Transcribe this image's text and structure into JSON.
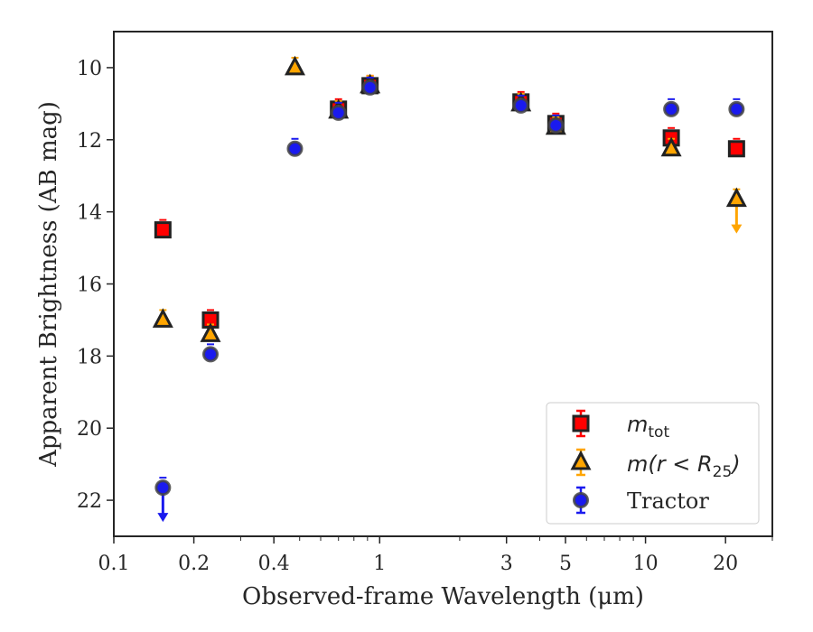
{
  "chart_data": {
    "type": "scatter",
    "xlabel": "Observed-frame Wavelength (μm)",
    "ylabel": "Apparent Brightness (AB mag)",
    "xscale": "log",
    "xlim": [
      0.1,
      30
    ],
    "ylim": [
      23.0,
      9.0
    ],
    "y_inverted": true,
    "xticks": [
      {
        "value": 0.1,
        "label": "0.1"
      },
      {
        "value": 0.2,
        "label": "0.2"
      },
      {
        "value": 0.4,
        "label": "0.4"
      },
      {
        "value": 1,
        "label": "1"
      },
      {
        "value": 3,
        "label": "3"
      },
      {
        "value": 5,
        "label": "5"
      },
      {
        "value": 10,
        "label": "10"
      },
      {
        "value": 20,
        "label": "20"
      }
    ],
    "yticks": [
      {
        "value": 10,
        "label": "10"
      },
      {
        "value": 12,
        "label": "12"
      },
      {
        "value": 14,
        "label": "14"
      },
      {
        "value": 16,
        "label": "16"
      },
      {
        "value": 18,
        "label": "18"
      },
      {
        "value": 20,
        "label": "20"
      },
      {
        "value": 22,
        "label": "22"
      }
    ],
    "grid": false,
    "legend_position": "bottom-right",
    "series": [
      {
        "key": "mtot",
        "label_main": "m",
        "label_sub": "tot",
        "marker": "square",
        "color": "#ff0000",
        "edge": "#222222",
        "points": [
          {
            "x": 0.153,
            "y": 14.5
          },
          {
            "x": 0.231,
            "y": 17.0
          },
          {
            "x": 0.7,
            "y": 11.15
          },
          {
            "x": 0.92,
            "y": 10.5
          },
          {
            "x": 3.4,
            "y": 10.95
          },
          {
            "x": 4.6,
            "y": 11.55
          },
          {
            "x": 12.5,
            "y": 11.95
          },
          {
            "x": 22.0,
            "y": 12.25
          }
        ]
      },
      {
        "key": "mr25",
        "label_main": "m(r < R",
        "label_sub": "25",
        "label_end": ")",
        "marker": "triangle",
        "color": "#ffa500",
        "edge": "#222222",
        "points": [
          {
            "x": 0.153,
            "y": 17.0
          },
          {
            "x": 0.231,
            "y": 17.4
          },
          {
            "x": 0.48,
            "y": 10.0
          },
          {
            "x": 0.7,
            "y": 11.2
          },
          {
            "x": 0.92,
            "y": 10.5
          },
          {
            "x": 3.4,
            "y": 11.0
          },
          {
            "x": 4.6,
            "y": 11.65
          },
          {
            "x": 12.5,
            "y": 12.25
          },
          {
            "x": 22.0,
            "y": 13.65,
            "upper_limit": true
          }
        ]
      },
      {
        "key": "tractor",
        "label_main": "Tractor",
        "marker": "circle",
        "color": "#1a1aee",
        "edge": "#444444",
        "points": [
          {
            "x": 0.153,
            "y": 21.65,
            "upper_limit": true
          },
          {
            "x": 0.231,
            "y": 17.95
          },
          {
            "x": 0.48,
            "y": 12.25
          },
          {
            "x": 0.7,
            "y": 11.25
          },
          {
            "x": 0.92,
            "y": 10.55
          },
          {
            "x": 3.4,
            "y": 11.05
          },
          {
            "x": 4.6,
            "y": 11.6
          },
          {
            "x": 12.5,
            "y": 11.15
          },
          {
            "x": 22.0,
            "y": 11.15
          }
        ]
      }
    ]
  }
}
